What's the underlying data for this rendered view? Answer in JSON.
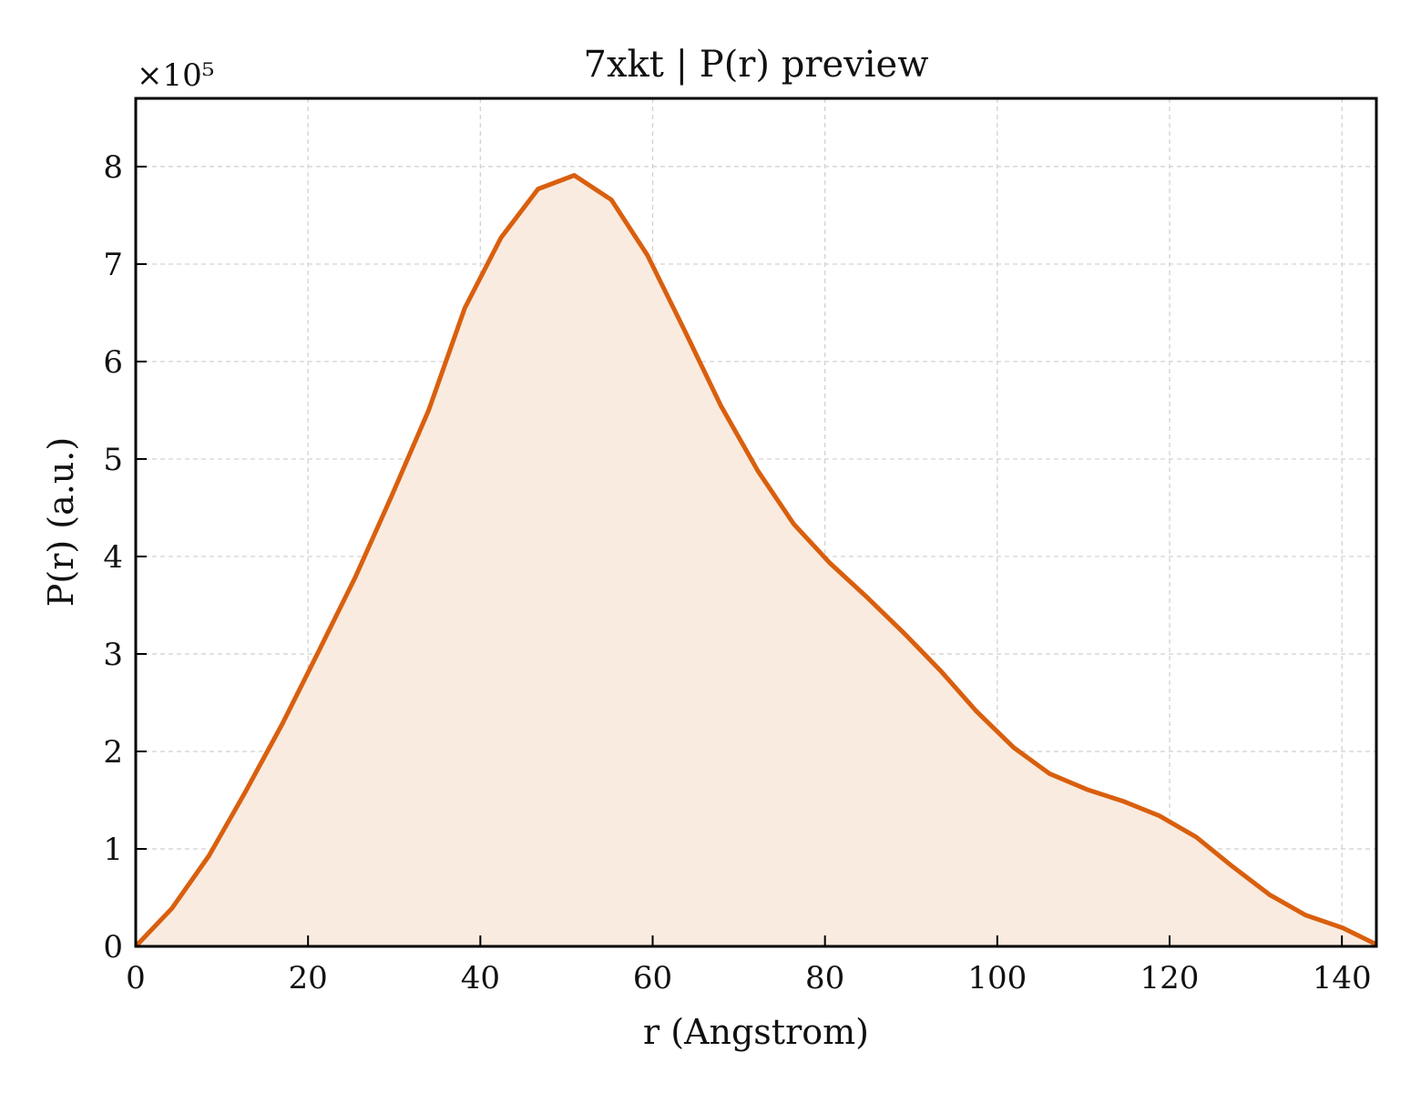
{
  "chart_data": {
    "type": "area",
    "title": "7xkt | P(r) preview",
    "xlabel": "r (Angstrom)",
    "ylabel": "P(r) (a.u.)",
    "y_scale_label": "×10⁵",
    "y_scale_factor": 100000,
    "xlim": [
      0,
      144
    ],
    "ylim": [
      0,
      8.7
    ],
    "x_ticks": [
      0,
      20,
      40,
      60,
      80,
      100,
      120,
      140
    ],
    "y_ticks": [
      0,
      1,
      2,
      3,
      4,
      5,
      6,
      7,
      8
    ],
    "grid": true,
    "line_color": "#d95f0e",
    "fill_color": "#f9ebe0",
    "series": [
      {
        "x": [
          0,
          4.2,
          8.5,
          12.7,
          17.0,
          21.2,
          25.5,
          29.7,
          34.0,
          38.2,
          42.4,
          46.7,
          50.9,
          55.2,
          59.4,
          63.7,
          67.9,
          72.2,
          76.4,
          80.6,
          84.9,
          89.1,
          93.4,
          97.6,
          101.9,
          106.1,
          110.4,
          114.6,
          118.8,
          123.1,
          127.3,
          131.6,
          135.8,
          140.1,
          144.0
        ],
        "y": [
          0.0,
          0.39,
          0.93,
          1.58,
          2.28,
          3.02,
          3.79,
          4.62,
          5.5,
          6.55,
          7.27,
          7.77,
          7.91,
          7.66,
          7.09,
          6.32,
          5.55,
          4.88,
          4.33,
          3.93,
          3.58,
          3.22,
          2.83,
          2.41,
          2.04,
          1.77,
          1.61,
          1.49,
          1.34,
          1.12,
          0.82,
          0.53,
          0.32,
          0.19,
          0.02
        ]
      }
    ]
  }
}
